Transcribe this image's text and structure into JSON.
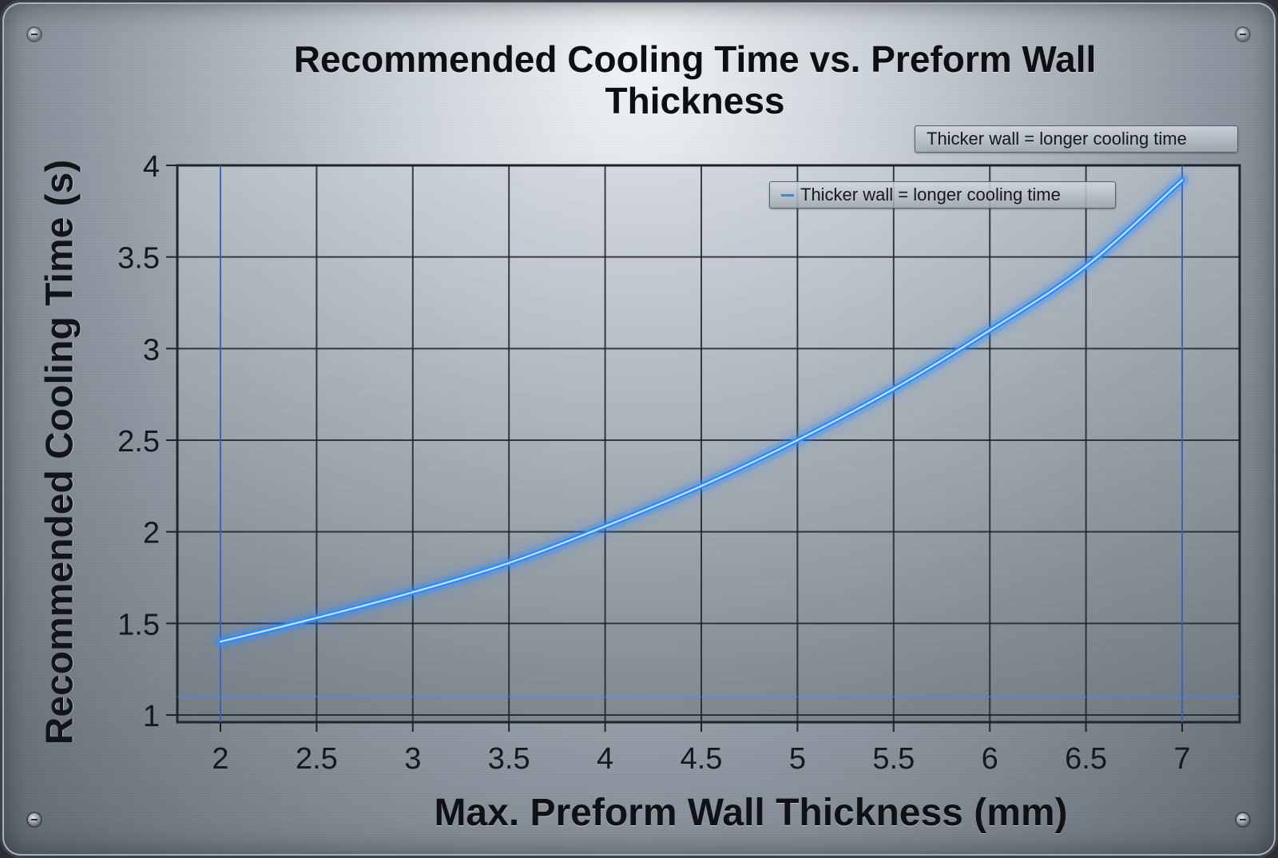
{
  "chart_data": {
    "type": "line",
    "title": "Recommended Cooling Time vs. Preform Wall Thickness",
    "xlabel": "Max. Preform Wall Thickness (mm)",
    "ylabel": "Recommended Cooling Time (s)",
    "xlim": [
      1.8,
      7.2
    ],
    "ylim": [
      1,
      4
    ],
    "xticks": [
      "2",
      "2.5",
      "3",
      "3.5",
      "4",
      "4.5",
      "5",
      "5.5",
      "6",
      "6.5",
      "7"
    ],
    "yticks": [
      "1",
      "1.5",
      "2",
      "2.5",
      "3",
      "3.5",
      "4"
    ],
    "grid": true,
    "legend_position": "top-right",
    "series": [
      {
        "name": "Thicker wall = longer cooling time",
        "color": "#2f8cff",
        "x": [
          2,
          2.5,
          3,
          3.5,
          4,
          4.5,
          5,
          5.5,
          6,
          6.5,
          7
        ],
        "y": [
          1.4,
          1.53,
          1.67,
          1.83,
          2.03,
          2.25,
          2.5,
          2.78,
          3.1,
          3.45,
          3.92
        ]
      }
    ]
  },
  "legend_outer_text": "Thicker wall = longer cooling time"
}
